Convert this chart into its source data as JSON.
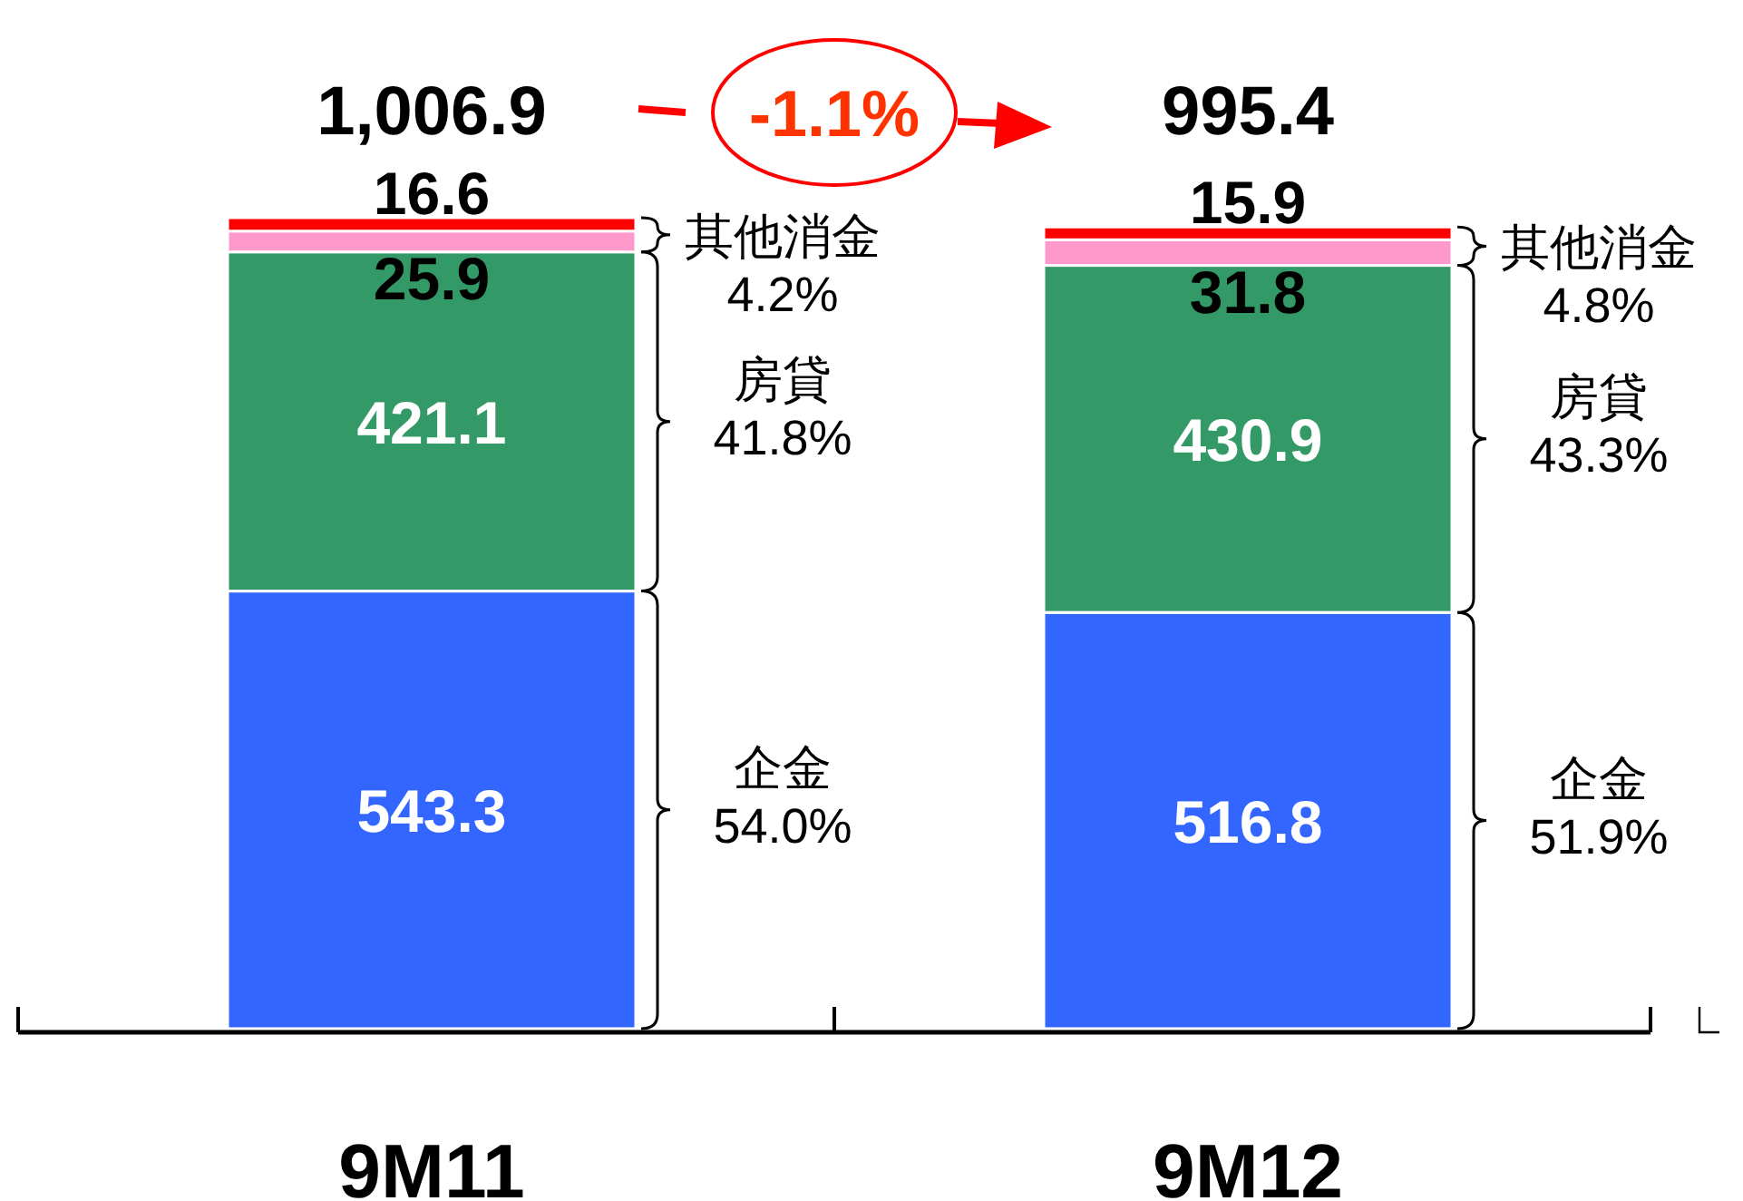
{
  "chart_data": {
    "type": "bar",
    "stacked": true,
    "categories": [
      "9M11",
      "9M12"
    ],
    "series": [
      {
        "color": "#3366ff",
        "values": [
          543.3,
          516.8
        ]
      },
      {
        "color": "#339966",
        "values": [
          421.1,
          430.9
        ]
      },
      {
        "color": "#ff99cc",
        "values": [
          25.9,
          31.8
        ]
      },
      {
        "color": "#ff0000",
        "values": [
          16.6,
          15.9
        ]
      }
    ],
    "data_labels": true,
    "totals": [
      "1,006.9",
      "995.4"
    ],
    "annotations": [
      "-1.1%",
      "企金 54.0%",
      "房貸 41.8%",
      "其他消金 4.2%",
      "企金 51.9%",
      "房貸 43.3%",
      "其他消金 4.8%"
    ]
  }
}
